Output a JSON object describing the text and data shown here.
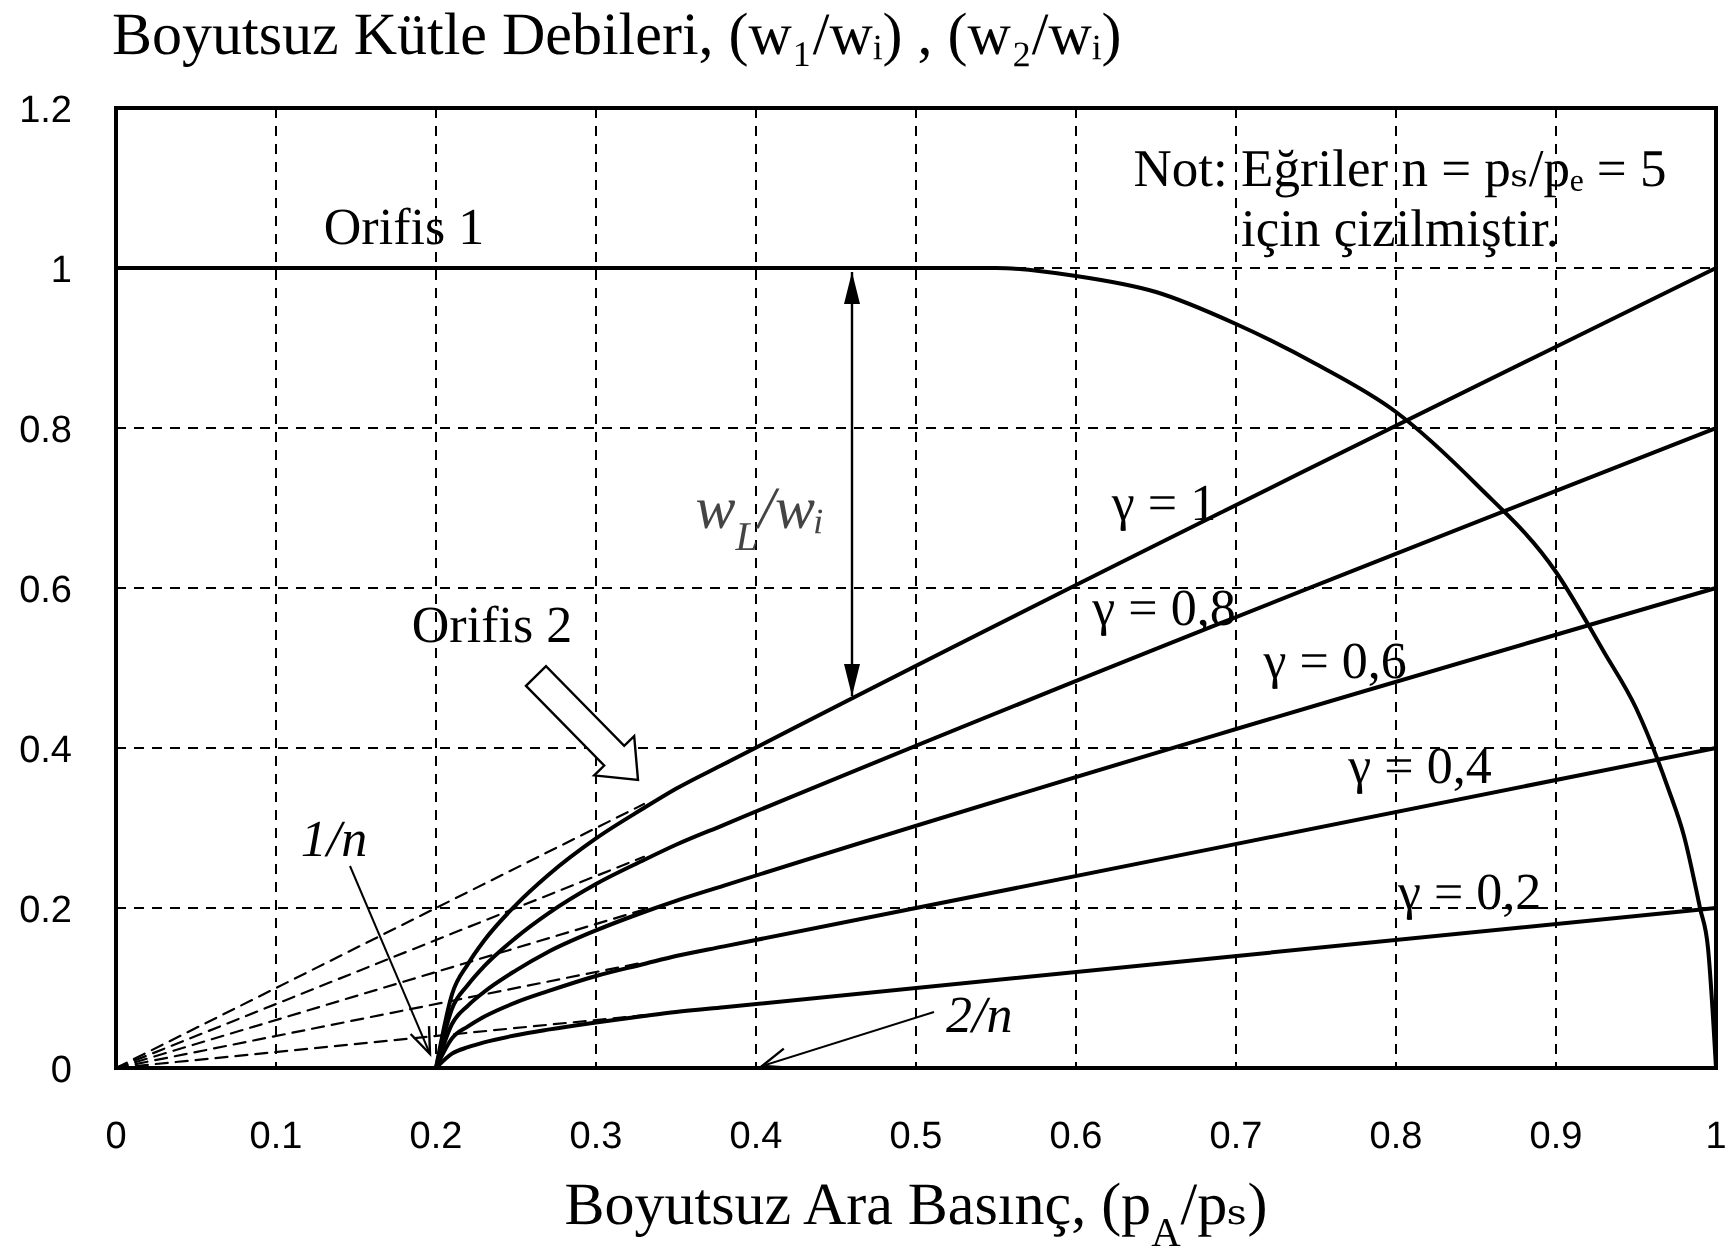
{
  "chart_data": {
    "type": "line",
    "ylabel": "Boyutsuz Kütle Debileri, (w₁/wᵢ) , (w₂/wᵢ)",
    "xlabel": "Boyutsuz Ara Basınç, (p$_{A}$/pₛ)",
    "annotations": [
      "Not: Eğriler n = pₛ/pₑ = 5\niçin çizilmiştir.",
      "Orifis 2",
      {
        "text": "1/n",
        "x": 0.2,
        "y": 0
      },
      "2/n",
      "w$_{L}$/wᵢ"
    ],
    "xlim": [
      0,
      1
    ],
    "ylim": [
      0,
      1.2
    ],
    "xticks": [
      0,
      0.1,
      0.2,
      0.3,
      0.4,
      0.5,
      0.6,
      0.7,
      0.8,
      0.9,
      1
    ],
    "yticks": [
      0,
      0.2,
      0.4,
      0.6,
      0.8,
      1,
      1.2
    ],
    "grid": true,
    "legend": false,
    "series": [
      {
        "name": "Orifis 1",
        "color": "#000000",
        "x": [
          0,
          0.53,
          0.55,
          0.6,
          0.65,
          0.7,
          0.75,
          0.8,
          0.85,
          0.9,
          0.93,
          0.95,
          0.97,
          0.98,
          0.99,
          0.995,
          1
        ],
        "values": [
          1,
          1,
          1,
          0.99,
          0.97,
          0.93,
          0.88,
          0.82,
          0.73,
          0.62,
          0.52,
          0.45,
          0.35,
          0.29,
          0.2,
          0.15,
          0
        ]
      },
      {
        "name": "γ = 1",
        "color": "#000000",
        "x": [
          0.2,
          0.21,
          0.22,
          0.23,
          0.25,
          0.27,
          0.3,
          0.33,
          0.35,
          0.38,
          1
        ],
        "values": [
          0,
          0.092,
          0.13,
          0.159,
          0.204,
          0.241,
          0.287,
          0.325,
          0.349,
          0.38,
          1
        ]
      },
      {
        "name": "γ = 0,8",
        "color": "#000000",
        "x": [
          0.2,
          0.21,
          0.22,
          0.23,
          0.25,
          0.27,
          0.3,
          0.33,
          0.35,
          0.38,
          1
        ],
        "values": [
          0,
          0.074,
          0.104,
          0.127,
          0.163,
          0.193,
          0.23,
          0.26,
          0.279,
          0.304,
          0.8
        ]
      },
      {
        "name": "γ = 0,6",
        "color": "#000000",
        "x": [
          0.2,
          0.21,
          0.22,
          0.23,
          0.25,
          0.27,
          0.3,
          0.33,
          0.35,
          0.38,
          1
        ],
        "values": [
          0,
          0.055,
          0.078,
          0.095,
          0.122,
          0.145,
          0.172,
          0.195,
          0.209,
          0.228,
          0.6
        ]
      },
      {
        "name": "γ = 0,4",
        "color": "#000000",
        "x": [
          0.2,
          0.21,
          0.22,
          0.23,
          0.25,
          0.27,
          0.3,
          0.33,
          0.35,
          0.38,
          1
        ],
        "values": [
          0,
          0.037,
          0.052,
          0.064,
          0.082,
          0.096,
          0.115,
          0.13,
          0.14,
          0.152,
          0.4
        ]
      },
      {
        "name": "γ = 0,2",
        "color": "#000000",
        "x": [
          0.2,
          0.21,
          0.22,
          0.23,
          0.25,
          0.27,
          0.3,
          0.33,
          0.35,
          0.38,
          1
        ],
        "values": [
          0,
          0.018,
          0.026,
          0.032,
          0.041,
          0.048,
          0.057,
          0.065,
          0.07,
          0.076,
          0.2
        ]
      },
      {
        "color": "#000000",
        "line_style": "dashed",
        "x": [
          0,
          0.33
        ],
        "values": [
          0,
          0.33
        ]
      },
      {
        "color": "#000000",
        "line_style": "dashed",
        "x": [
          0,
          0.33
        ],
        "values": [
          0,
          0.264
        ]
      },
      {
        "color": "#000000",
        "line_style": "dashed",
        "x": [
          0,
          0.33
        ],
        "values": [
          0,
          0.198
        ]
      },
      {
        "color": "#000000",
        "line_style": "dashed",
        "x": [
          0,
          0.33
        ],
        "values": [
          0,
          0.132
        ]
      },
      {
        "color": "#000000",
        "line_style": "dashed",
        "x": [
          0,
          0.33
        ],
        "values": [
          0,
          0.066
        ]
      }
    ]
  }
}
